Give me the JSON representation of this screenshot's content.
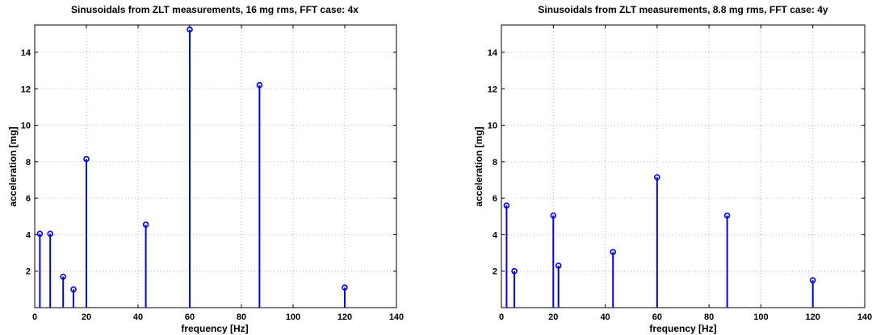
{
  "chart_data": [
    {
      "type": "stem",
      "title": "Sinusoidals from ZLT measurements, 16 mg rms, FFT case: 4x",
      "xlabel": "frequency [Hz]",
      "ylabel": "acceleration [mg]",
      "xlim": [
        0,
        140
      ],
      "ylim": [
        0,
        15.5
      ],
      "xticks": [
        0,
        20,
        40,
        60,
        80,
        100,
        120,
        140
      ],
      "yticks": [
        2,
        4,
        6,
        8,
        10,
        12,
        14
      ],
      "grid": true,
      "color": "#0000ff",
      "x": [
        2,
        6,
        11,
        15,
        20,
        43,
        60,
        87,
        120
      ],
      "y": [
        4.05,
        4.05,
        1.7,
        1.0,
        8.15,
        4.55,
        15.25,
        12.2,
        1.1
      ]
    },
    {
      "type": "stem",
      "title": "Sinusoidals from ZLT measurements, 8.8 mg rms, FFT case: 4y",
      "xlabel": "frequency [Hz]",
      "ylabel": "acceleration [mg]",
      "xlim": [
        0,
        140
      ],
      "ylim": [
        0,
        15.5
      ],
      "xticks": [
        0,
        20,
        40,
        60,
        80,
        100,
        120,
        140
      ],
      "yticks": [
        2,
        4,
        6,
        8,
        10,
        12,
        14
      ],
      "grid": true,
      "color": "#0000ff",
      "x": [
        2,
        5,
        20,
        22,
        43,
        60,
        87,
        120
      ],
      "y": [
        5.6,
        2.0,
        5.05,
        2.3,
        3.05,
        7.15,
        5.05,
        1.5
      ]
    }
  ]
}
